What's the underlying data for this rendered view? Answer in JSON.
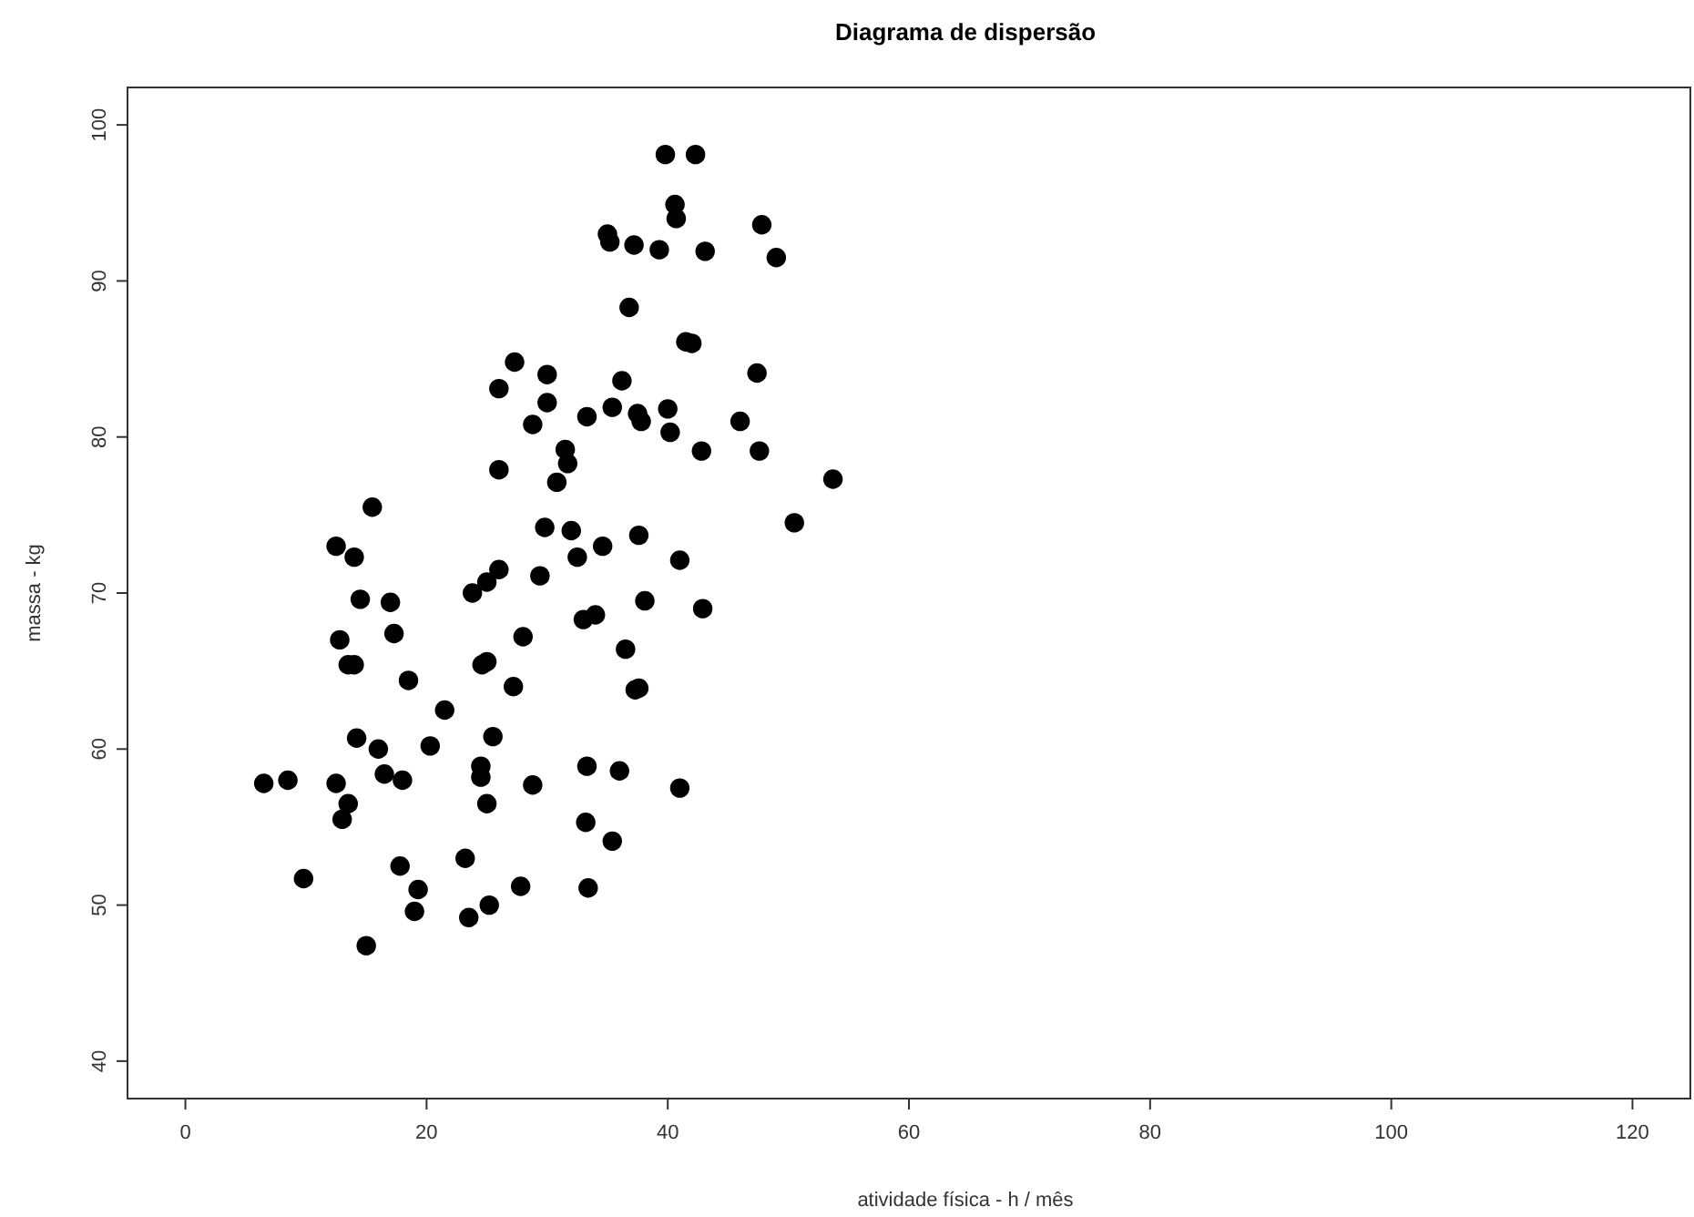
{
  "chart_data": {
    "type": "scatter",
    "title": "Diagrama de dispersão",
    "xlabel": "atividade física - h / mês",
    "ylabel": "massa - kg",
    "marker": "circle",
    "xlim": [
      -4.8,
      124.8
    ],
    "ylim": [
      37.6,
      102.4
    ],
    "xticks": [
      0,
      20,
      40,
      60,
      80,
      100,
      120
    ],
    "yticks": [
      40,
      50,
      60,
      70,
      80,
      90,
      100
    ],
    "series": [
      {
        "color": "#000000",
        "x": [
          6.5,
          8.5,
          9.8,
          12.5,
          12.5,
          12.8,
          13,
          13.5,
          13.5,
          14,
          14,
          14.2,
          14.5,
          15,
          15.5,
          16,
          16.5,
          17,
          17.3,
          17.8,
          18,
          18.5,
          19,
          19.3,
          20.3,
          21.5,
          23.2,
          23.5,
          23.8,
          24.5,
          24.5,
          24.6,
          25,
          25,
          25,
          25.2,
          25.5,
          26,
          26,
          26,
          27.2,
          27.3,
          27.8,
          28,
          28.8,
          28.8,
          29.4,
          29.8,
          30,
          30,
          30.8,
          31.5,
          31.7,
          32,
          32.5,
          33,
          33.2,
          33.3,
          33.3,
          33.4,
          34,
          34.6,
          35,
          35.2,
          35.4,
          35.4,
          36,
          36.2,
          36.5,
          36.8,
          37.2,
          37.3,
          37.6,
          37.5,
          37.6,
          37.8,
          38.1,
          39.3,
          39.8,
          40,
          40.2,
          40.6,
          40.7,
          41,
          41,
          41.5,
          42,
          42.3,
          42.8,
          42.9,
          43.1,
          46,
          47.4,
          47.6,
          47.8,
          49,
          50.5,
          53.7
        ],
        "values": [
          57.8,
          58,
          51.7,
          57.8,
          73,
          67,
          55.5,
          56.5,
          65.4,
          65.4,
          72.3,
          60.7,
          69.6,
          47.4,
          75.5,
          60,
          58.4,
          69.4,
          67.4,
          52.5,
          58,
          64.4,
          49.6,
          51,
          60.2,
          62.5,
          53,
          49.2,
          70,
          58.9,
          58.2,
          65.4,
          65.6,
          70.7,
          56.5,
          50,
          60.8,
          71.5,
          83.1,
          77.9,
          64,
          84.8,
          51.2,
          67.2,
          80.8,
          57.7,
          71.1,
          74.2,
          82.2,
          84,
          77.1,
          79.2,
          78.3,
          74,
          72.3,
          68.3,
          55.3,
          81.3,
          58.9,
          51.1,
          68.6,
          73,
          93,
          92.5,
          54.1,
          81.9,
          58.6,
          83.6,
          66.4,
          88.3,
          92.3,
          63.8,
          63.9,
          81.5,
          73.7,
          81,
          69.5,
          92,
          98.1,
          81.8,
          80.3,
          94.9,
          94,
          57.5,
          72.1,
          86.1,
          86,
          98.1,
          79.1,
          69,
          91.9,
          81,
          84.1,
          79.1,
          93.6,
          91.5,
          74.5,
          77.3
        ]
      }
    ]
  }
}
